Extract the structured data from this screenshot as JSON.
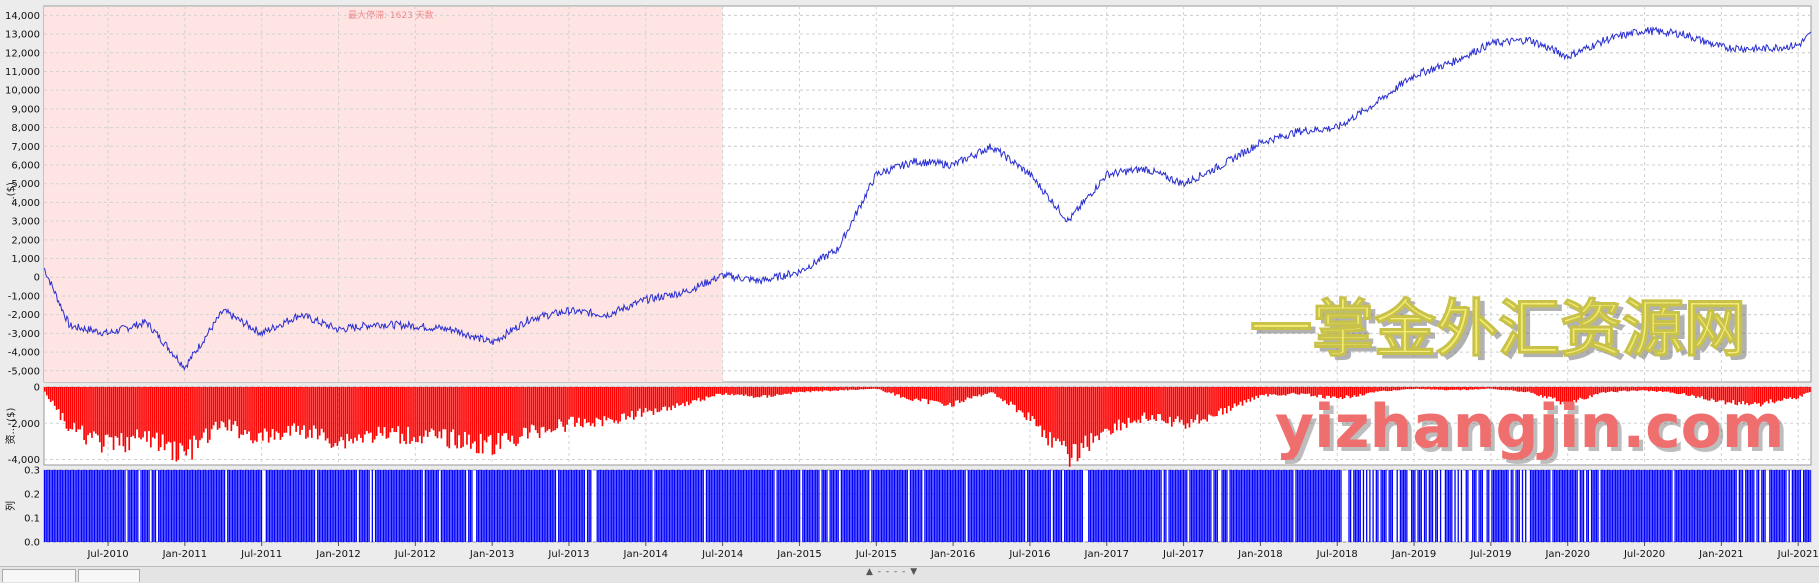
{
  "chart_data": [
    {
      "type": "line",
      "panel": "equity",
      "y_ticks": [
        "14,000",
        "13,000",
        "12,000",
        "11,000",
        "10,000",
        "9,000",
        "8,000",
        "7,000",
        "6,000",
        "5,000",
        "4,000",
        "3,000",
        "2,000",
        "1,000",
        "0",
        "-1,000",
        "-2,000",
        "-3,000",
        "-4,000",
        "-5,000"
      ],
      "ylim": [
        -5600,
        14500
      ],
      "series_color": "#2a2fd0",
      "highlight": {
        "x_start": "Feb-2010",
        "x_end": "Jul-2014",
        "label": "最大停滞: 1623 天数",
        "color": "#ffe4e4"
      },
      "x": [
        "Feb-2010",
        "Apr-2010",
        "Jul-2010",
        "Oct-2010",
        "Jan-2011",
        "Apr-2011",
        "Jul-2011",
        "Oct-2011",
        "Jan-2012",
        "Apr-2012",
        "Jul-2012",
        "Oct-2012",
        "Jan-2013",
        "Apr-2013",
        "Jul-2013",
        "Oct-2013",
        "Jan-2014",
        "Apr-2014",
        "Jul-2014",
        "Oct-2014",
        "Jan-2015",
        "Apr-2015",
        "Jul-2015",
        "Oct-2015",
        "Jan-2016",
        "Apr-2016",
        "Jul-2016",
        "Oct-2016",
        "Jan-2017",
        "Apr-2017",
        "Jul-2017",
        "Oct-2017",
        "Jan-2018",
        "Apr-2018",
        "Jul-2018",
        "Oct-2018",
        "Jan-2019",
        "Apr-2019",
        "Jul-2019",
        "Oct-2019",
        "Jan-2020",
        "Apr-2020",
        "Jul-2020",
        "Oct-2020",
        "Jan-2021",
        "Apr-2021",
        "Jul-2021",
        "Aug-2021"
      ],
      "values": [
        500,
        -2600,
        -3000,
        -2400,
        -4800,
        -1800,
        -3000,
        -2000,
        -2800,
        -2500,
        -2600,
        -2800,
        -3500,
        -2200,
        -1800,
        -2000,
        -1200,
        -800,
        100,
        -200,
        300,
        1500,
        5500,
        6200,
        6000,
        7000,
        5500,
        3000,
        5500,
        5800,
        5000,
        6000,
        7200,
        7800,
        8000,
        9300,
        10800,
        11500,
        12500,
        12700,
        11800,
        12700,
        13200,
        13000,
        12300,
        12200,
        12400,
        13000
      ]
    },
    {
      "type": "bar",
      "panel": "drawdown",
      "ylabel": "资... ($)",
      "y_ticks": [
        "0",
        "-2,000",
        "-4,000"
      ],
      "ylim": [
        -4300,
        0
      ],
      "series_color": "#ff0000",
      "x": [
        "Feb-2010",
        "Apr-2010",
        "Jul-2010",
        "Oct-2010",
        "Jan-2011",
        "Apr-2011",
        "Jul-2011",
        "Oct-2011",
        "Jan-2012",
        "Apr-2012",
        "Jul-2012",
        "Oct-2012",
        "Jan-2013",
        "Apr-2013",
        "Jul-2013",
        "Oct-2013",
        "Jan-2014",
        "Apr-2014",
        "Jul-2014",
        "Oct-2014",
        "Jan-2015",
        "Apr-2015",
        "Jul-2015",
        "Oct-2015",
        "Jan-2016",
        "Apr-2016",
        "Jul-2016",
        "Oct-2016",
        "Jan-2017",
        "Apr-2017",
        "Jul-2017",
        "Oct-2017",
        "Jan-2018",
        "Apr-2018",
        "Jul-2018",
        "Oct-2018",
        "Jan-2019",
        "Apr-2019",
        "Jul-2019",
        "Oct-2019",
        "Jan-2020",
        "Apr-2020",
        "Jul-2020",
        "Oct-2020",
        "Jan-2021",
        "Apr-2021",
        "Jul-2021",
        "Aug-2021"
      ],
      "values": [
        -200,
        -2500,
        -3500,
        -3000,
        -4000,
        -2200,
        -3100,
        -2500,
        -3200,
        -2800,
        -2900,
        -3100,
        -3500,
        -2700,
        -2200,
        -2000,
        -1500,
        -1000,
        -400,
        -600,
        -300,
        -200,
        -100,
        -800,
        -1000,
        -300,
        -1800,
        -4200,
        -2500,
        -1800,
        -2200,
        -1500,
        -500,
        -400,
        -700,
        -300,
        -100,
        -200,
        -100,
        -300,
        -1000,
        -300,
        -200,
        -400,
        -900,
        -1000,
        -600,
        -300
      ]
    },
    {
      "type": "bar",
      "panel": "volume",
      "ylabel": "列",
      "y_ticks": [
        "0.3",
        "0.2",
        "0.1",
        "0.0"
      ],
      "ylim": [
        0,
        0.3
      ],
      "series_color": "#0000ff",
      "values_note_value": 0.3,
      "sparse_ranges": [
        [
          "Jul-2018",
          "Oct-2019"
        ]
      ]
    }
  ],
  "x_axis": {
    "labels": [
      "Jul-2010",
      "Jan-2011",
      "Jul-2011",
      "Jan-2012",
      "Jul-2012",
      "Jan-2013",
      "Jul-2013",
      "Jan-2014",
      "Jul-2014",
      "Jan-2015",
      "Jul-2015",
      "Jan-2016",
      "Jul-2016",
      "Jan-2017",
      "Jul-2017",
      "Jan-2018",
      "Jul-2018",
      "Jan-2019",
      "Jul-2019",
      "Jan-2020",
      "Jul-2020",
      "Jan-2021",
      "Jul-2021"
    ]
  },
  "equity_ylabel": "...($)",
  "watermark": {
    "line1": "一掌金外汇资源网",
    "line2": "yizhangjin.com"
  },
  "footer_handle": "▲ - - - - ▼"
}
